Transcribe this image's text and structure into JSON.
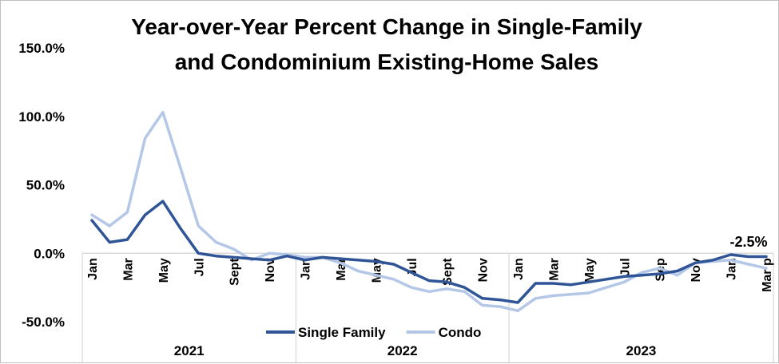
{
  "chart_data": {
    "type": "line",
    "title_lines": [
      "Year-over-Year Percent Change in Single-Family",
      "and Condominium Existing-Home Sales"
    ],
    "yaxis": {
      "min": -50,
      "max": 150,
      "ticks": [
        150,
        100,
        50,
        0,
        -50
      ],
      "tick_labels": [
        "150.0%",
        "100.0%",
        "50.0%",
        "0.0%",
        "-50.0%"
      ]
    },
    "x_tick_labels": [
      "Jan",
      "",
      "Mar",
      "",
      "May",
      "",
      "Jul",
      "",
      "Sept",
      "",
      "Nov",
      "",
      "Jan",
      "",
      "Mar",
      "",
      "May",
      "",
      "Jul",
      "",
      "Sept",
      "",
      "Nov",
      "",
      "Jan",
      "",
      "Mar",
      "",
      "May",
      "",
      "Jul",
      "",
      "Sep",
      "",
      "Nov",
      "",
      "Jan",
      "",
      "Mar p"
    ],
    "years": [
      {
        "label": "2021",
        "start": 0,
        "end": 12
      },
      {
        "label": "2022",
        "start": 12,
        "end": 24
      },
      {
        "label": "2023",
        "start": 24,
        "end": 39
      }
    ],
    "grid": false,
    "legend_position": "bottom",
    "series": [
      {
        "name": "Single Family",
        "color": "#2f5597",
        "values": [
          24,
          8,
          10,
          28,
          38,
          18,
          0,
          -2,
          -3,
          -4,
          -5,
          -2,
          -5,
          -3,
          -4,
          -5,
          -6,
          -8,
          -14,
          -20,
          -21,
          -25,
          -33,
          -34,
          -36,
          -22,
          -22,
          -23,
          -21,
          -19,
          -17,
          -16,
          -15,
          -13,
          -7,
          -5,
          -1,
          -2.5,
          -2.5
        ]
      },
      {
        "name": "Condo",
        "color": "#b4c7e7",
        "values": [
          28,
          20,
          30,
          84,
          103,
          62,
          20,
          8,
          3,
          -5,
          0,
          -1,
          -3,
          -3,
          -7,
          -13,
          -16,
          -19,
          -25,
          -28,
          -26,
          -28,
          -38,
          -39,
          -42,
          -33,
          -31,
          -30,
          -29,
          -25,
          -21,
          -14,
          -11,
          -16,
          -7,
          -6,
          -5,
          -8,
          -11
        ]
      }
    ],
    "annotation": {
      "text": "-2.5%",
      "index": 38,
      "series": "Single Family"
    }
  }
}
